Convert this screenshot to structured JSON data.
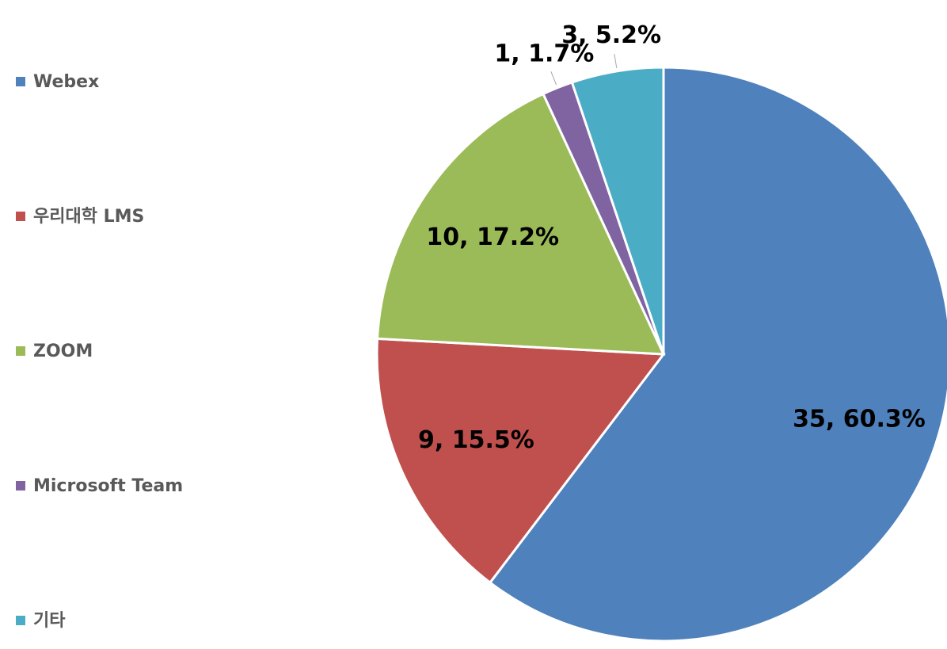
{
  "chart_data": {
    "type": "pie",
    "categories": [
      "Webex",
      "우리대학 LMS",
      "ZOOM",
      "Microsoft Team",
      "기타"
    ],
    "values": [
      35,
      9,
      10,
      1,
      3
    ],
    "value_labels": [
      "35, 60.3%",
      "9, 15.5%",
      "10, 17.2%",
      "1, 1.7%",
      "3, 5.2%"
    ],
    "colors": [
      "#4f81bd",
      "#c0504d",
      "#9bbb59",
      "#8064a2",
      "#4bacc6"
    ],
    "legend": "left"
  }
}
